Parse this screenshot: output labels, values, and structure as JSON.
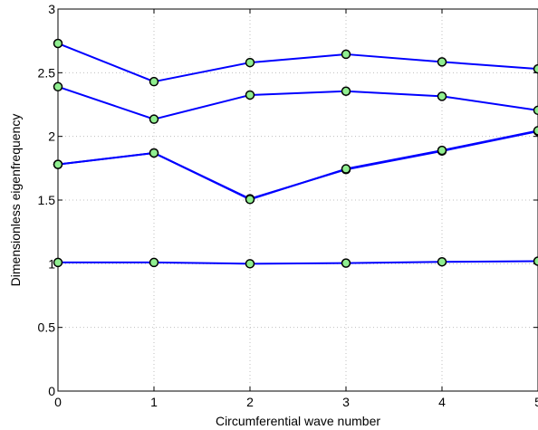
{
  "chart_data": {
    "type": "line",
    "title": "",
    "xlabel": "Circumferential wave number",
    "ylabel": "Dimensionless eigenfrequency",
    "x": [
      0,
      1,
      2,
      3,
      4,
      5
    ],
    "xlim": [
      0,
      5
    ],
    "ylim": [
      0,
      3
    ],
    "x_ticks": [
      0,
      1,
      2,
      3,
      4,
      5
    ],
    "y_ticks": [
      0,
      0.5,
      1,
      1.5,
      2,
      2.5,
      3
    ],
    "x_tick_labels": [
      "0",
      "1",
      "2",
      "3",
      "4",
      "5"
    ],
    "y_tick_labels": [
      "0",
      "0.5",
      "1",
      "1.5",
      "2",
      "2.5",
      "3"
    ],
    "grid": true,
    "series": [
      {
        "values": [
          1.01,
          1.01,
          1.0,
          1.005,
          1.015,
          1.02
        ]
      },
      {
        "values": [
          1.78,
          1.87,
          1.51,
          1.74,
          1.885,
          2.04
        ]
      },
      {
        "values": [
          1.78,
          1.87,
          1.505,
          1.745,
          1.89,
          2.045
        ]
      },
      {
        "values": [
          2.39,
          2.135,
          2.325,
          2.355,
          2.315,
          2.205
        ]
      },
      {
        "values": [
          2.73,
          2.43,
          2.58,
          2.645,
          2.585,
          2.53
        ]
      }
    ],
    "colors": {
      "line": "#0000ff",
      "marker_fill": "#90ee90",
      "marker_edge": "#000000",
      "grid": "#bfbfbf",
      "axes": "#000000"
    }
  }
}
